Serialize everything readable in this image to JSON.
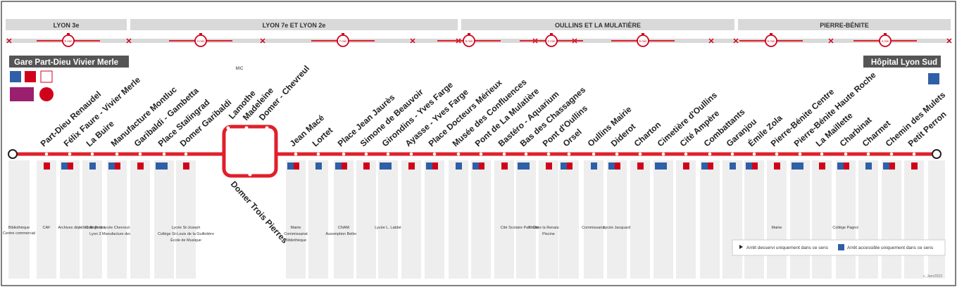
{
  "zones": [
    "LYON 3e",
    "LYON 7e ET LYON 2e",
    "OULLINS ET LA MULATIÈRE",
    "PIERRE-BÉNITE"
  ],
  "times": [
    "5 min",
    "4 min",
    "7 min",
    "8 min",
    "2 min",
    "5 min",
    "5 min",
    "4 min"
  ],
  "termini": {
    "start": "Gare Part-Dieu Vivier Merle",
    "end": "Hôpital Lyon Sud"
  },
  "start_landmarks": [
    "Bibliothèque",
    "Centre commercial"
  ],
  "mic": "MIC",
  "loop_stops": [
    "Lamothe",
    "Madeleine",
    "Domer - Chevreul",
    "Domer Trois Pierres"
  ],
  "stops": [
    {
      "name": "Part-Dieu Renaudel",
      "landmarks": [
        "CAF"
      ]
    },
    {
      "name": "Félix Faure - Vivier Merle",
      "landmarks": [
        "Archives dép."
      ]
    },
    {
      "name": "La Buire",
      "landmarks": [
        "Hôtel de Police"
      ]
    },
    {
      "name": "Manufacture Montluc",
      "landmarks": [
        "Collège et lycée Chevreul-Lestonnac",
        "Lyon 3 Manufacture des Tabacs"
      ]
    },
    {
      "name": "Garibaldi - Gambetta",
      "landmarks": []
    },
    {
      "name": "Place Stalingrad",
      "landmarks": []
    },
    {
      "name": "Domer Garibaldi",
      "landmarks": [
        "Lycée St-Joseph",
        "Collège St-Louis de la Guillotière",
        "École de Musique"
      ]
    },
    {
      "name": "Jean Macé",
      "landmarks": [
        "Mairie",
        "Commissariat",
        "Bibliothèque"
      ]
    },
    {
      "name": "Lortet",
      "landmarks": []
    },
    {
      "name": "Place Jean Jaurès",
      "landmarks": [
        "CNAM",
        "Assomption Bellevue"
      ]
    },
    {
      "name": "Simone de Beauvoir",
      "landmarks": []
    },
    {
      "name": "Girondins - Yves Farge",
      "landmarks": [
        "Lycée L. Labbé"
      ]
    },
    {
      "name": "Ayasse - Yves Farge",
      "landmarks": []
    },
    {
      "name": "Place Docteurs Mérieux",
      "landmarks": []
    },
    {
      "name": "Musée des Confluences",
      "landmarks": []
    },
    {
      "name": "Pont de La Mulatière",
      "landmarks": []
    },
    {
      "name": "Bastéro - Aquarium",
      "landmarks": []
    },
    {
      "name": "Bas des Chassagnes",
      "landmarks": [
        "Cité Scolaire Parc Chabrières"
      ]
    },
    {
      "name": "Pont d'Oullins",
      "landmarks": [
        "Théâtre la Renaissance",
        "Piscine"
      ]
    },
    {
      "name": "Orsel",
      "landmarks": []
    },
    {
      "name": "Oullins Mairie",
      "landmarks": [
        "Commissariat"
      ]
    },
    {
      "name": "Diderot",
      "landmarks": [
        "Lycée Jacquard"
      ]
    },
    {
      "name": "Charton",
      "landmarks": []
    },
    {
      "name": "Cimetière d'Oullins",
      "landmarks": []
    },
    {
      "name": "Cité Ampère",
      "landmarks": []
    },
    {
      "name": "Combattants",
      "landmarks": []
    },
    {
      "name": "Garanjou",
      "landmarks": []
    },
    {
      "name": "Émile Zola",
      "landmarks": []
    },
    {
      "name": "Pierre-Bénite Centre",
      "landmarks": [
        "Mairie"
      ]
    },
    {
      "name": "Pierre-Bénite Haute Roche",
      "landmarks": []
    },
    {
      "name": "La Maillette",
      "landmarks": []
    },
    {
      "name": "Charbinat",
      "landmarks": [
        "Collège Pagnol"
      ]
    },
    {
      "name": "Charmet",
      "landmarks": []
    },
    {
      "name": "Chemin des Mulets",
      "landmarks": []
    },
    {
      "name": "Petit Perron",
      "landmarks": []
    }
  ],
  "legend": [
    "Arrêt desservi uniquement dans ce sens",
    "Arrêt accessible uniquement dans ce sens"
  ],
  "version": "v_Janv2023"
}
